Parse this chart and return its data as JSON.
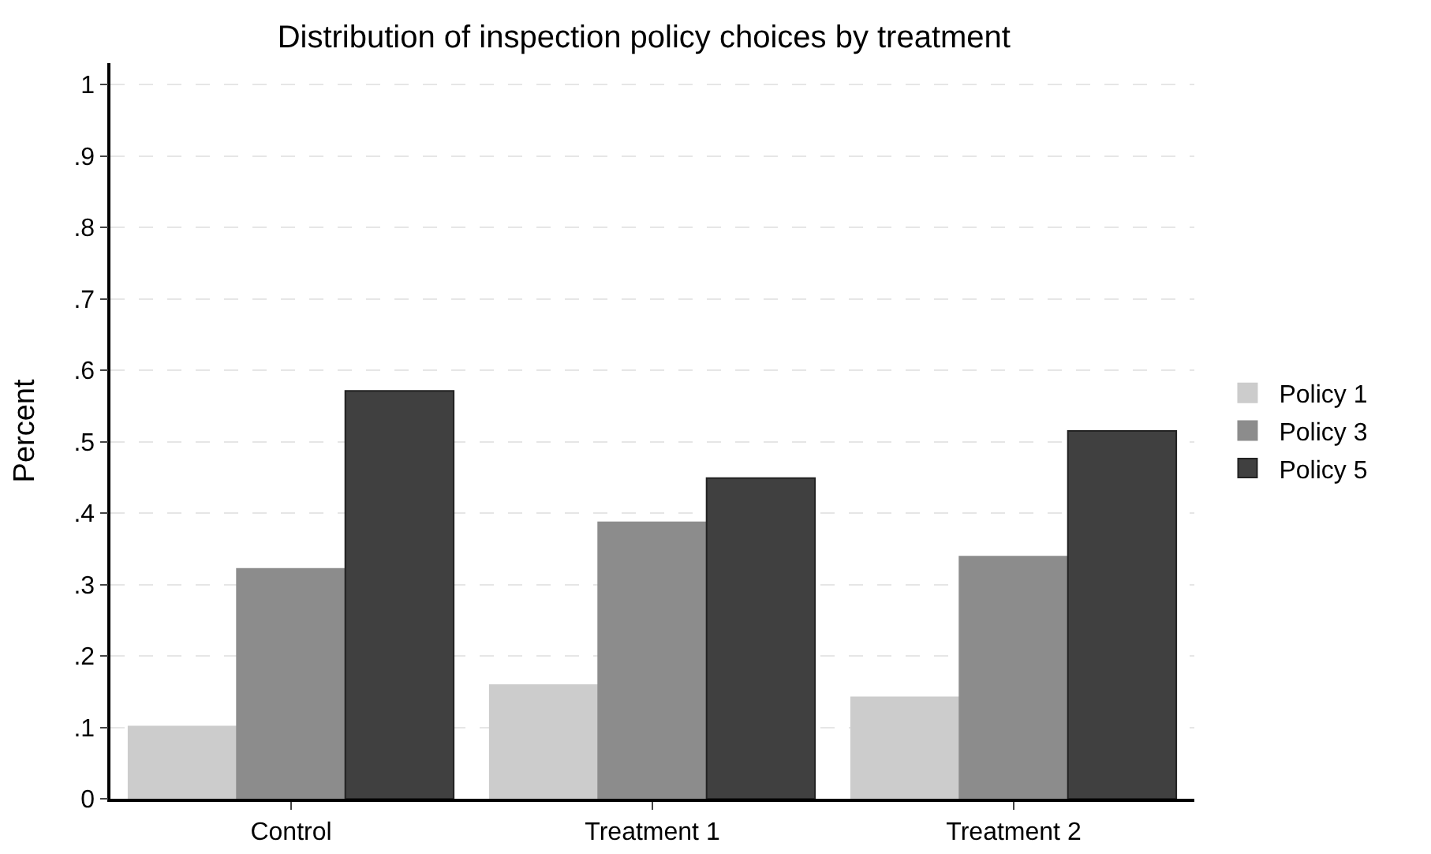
{
  "chart_data": {
    "type": "bar",
    "title": "Distribution of inspection policy choices by treatment",
    "ylabel": "Percent",
    "categories": [
      "Control",
      "Treatment 1",
      "Treatment 2"
    ],
    "series": [
      {
        "name": "Policy 1",
        "color": "#cccccc",
        "values": [
          0.101,
          0.159,
          0.142
        ]
      },
      {
        "name": "Policy 3",
        "color": "#8c8c8c",
        "values": [
          0.322,
          0.387,
          0.339
        ]
      },
      {
        "name": "Policy 5",
        "color": "#404040",
        "values": [
          0.571,
          0.449,
          0.515
        ]
      }
    ],
    "ylim": [
      0,
      1.03
    ],
    "yticks": [
      0,
      {
        "value": 0.1,
        "label": ".1"
      },
      {
        "value": 0.2,
        "label": ".2"
      },
      {
        "value": 0.3,
        "label": ".3"
      },
      {
        "value": 0.4,
        "label": ".4"
      },
      {
        "value": 0.5,
        "label": ".5"
      },
      {
        "value": 0.6,
        "label": ".6"
      },
      {
        "value": 0.7,
        "label": ".7"
      },
      {
        "value": 0.8,
        "label": ".8"
      },
      {
        "value": 0.9,
        "label": ".9"
      },
      1
    ],
    "grid": "y",
    "legend": "right"
  }
}
